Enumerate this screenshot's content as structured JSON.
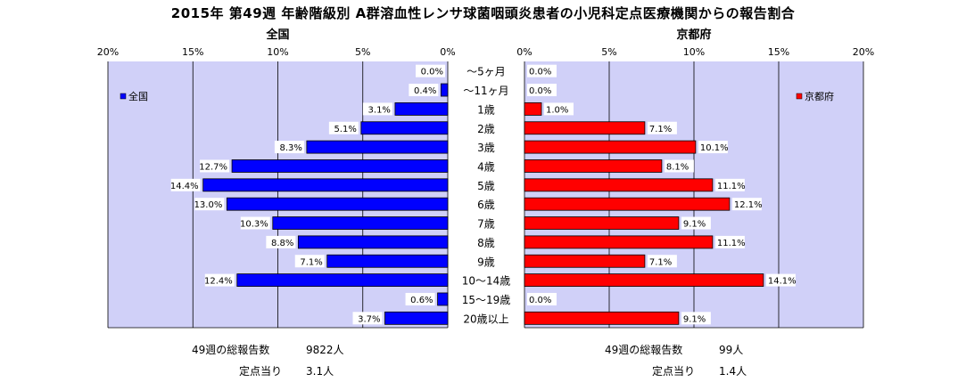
{
  "title": "2015年 第49週 年齢階級別 A群溶血性レンサ球菌咽頭炎患者の小児科定点医療機関からの報告割合",
  "chart_data": [
    {
      "type": "bar",
      "orientation": "horizontal",
      "direction": "right-to-left",
      "subtitle": "全国",
      "legend": "全国",
      "legend_placement": "top-left",
      "series_color": "#0000FF",
      "grid": true,
      "xlim": [
        0,
        20
      ],
      "ticks": [
        "20%",
        "15%",
        "10%",
        "5%",
        "0%"
      ],
      "categories": [
        "～5ヶ月",
        "～11ヶ月",
        "1歳",
        "2歳",
        "3歳",
        "4歳",
        "5歳",
        "6歳",
        "7歳",
        "8歳",
        "9歳",
        "10～14歳",
        "15～19歳",
        "20歳以上"
      ],
      "values": [
        0.0,
        0.4,
        3.1,
        5.1,
        8.3,
        12.7,
        14.4,
        13.0,
        10.3,
        8.8,
        7.1,
        12.4,
        0.6,
        3.7
      ],
      "labels": [
        "0.0%",
        "0.4%",
        "3.1%",
        "5.1%",
        "8.3%",
        "12.7%",
        "14.4%",
        "13.0%",
        "10.3%",
        "8.8%",
        "7.1%",
        "12.4%",
        "0.6%",
        "3.7%"
      ]
    },
    {
      "type": "bar",
      "orientation": "horizontal",
      "direction": "left-to-right",
      "subtitle": "京都府",
      "legend": "京都府",
      "legend_placement": "top-right",
      "series_color": "#FF0000",
      "grid": true,
      "xlim": [
        0,
        20
      ],
      "ticks": [
        "0%",
        "5%",
        "10%",
        "15%",
        "20%"
      ],
      "categories": [
        "～5ヶ月",
        "～11ヶ月",
        "1歳",
        "2歳",
        "3歳",
        "4歳",
        "5歳",
        "6歳",
        "7歳",
        "8歳",
        "9歳",
        "10～14歳",
        "15～19歳",
        "20歳以上"
      ],
      "values": [
        0.0,
        0.0,
        1.0,
        7.1,
        10.1,
        8.1,
        11.1,
        12.1,
        9.1,
        11.1,
        7.1,
        14.1,
        0.0,
        9.1
      ],
      "labels": [
        "0.0%",
        "0.0%",
        "1.0%",
        "7.1%",
        "10.1%",
        "8.1%",
        "11.1%",
        "12.1%",
        "9.1%",
        "11.1%",
        "7.1%",
        "14.1%",
        "0.0%",
        "9.1%"
      ]
    }
  ],
  "footer": {
    "national": {
      "total_label": "49週の総報告数",
      "total_value": "9822人",
      "per_label": "定点当り",
      "per_value": "3.1人"
    },
    "kyoto": {
      "total_label": "49週の総報告数",
      "total_value": "99人",
      "per_label": "定点当り",
      "per_value": "1.4人"
    }
  }
}
